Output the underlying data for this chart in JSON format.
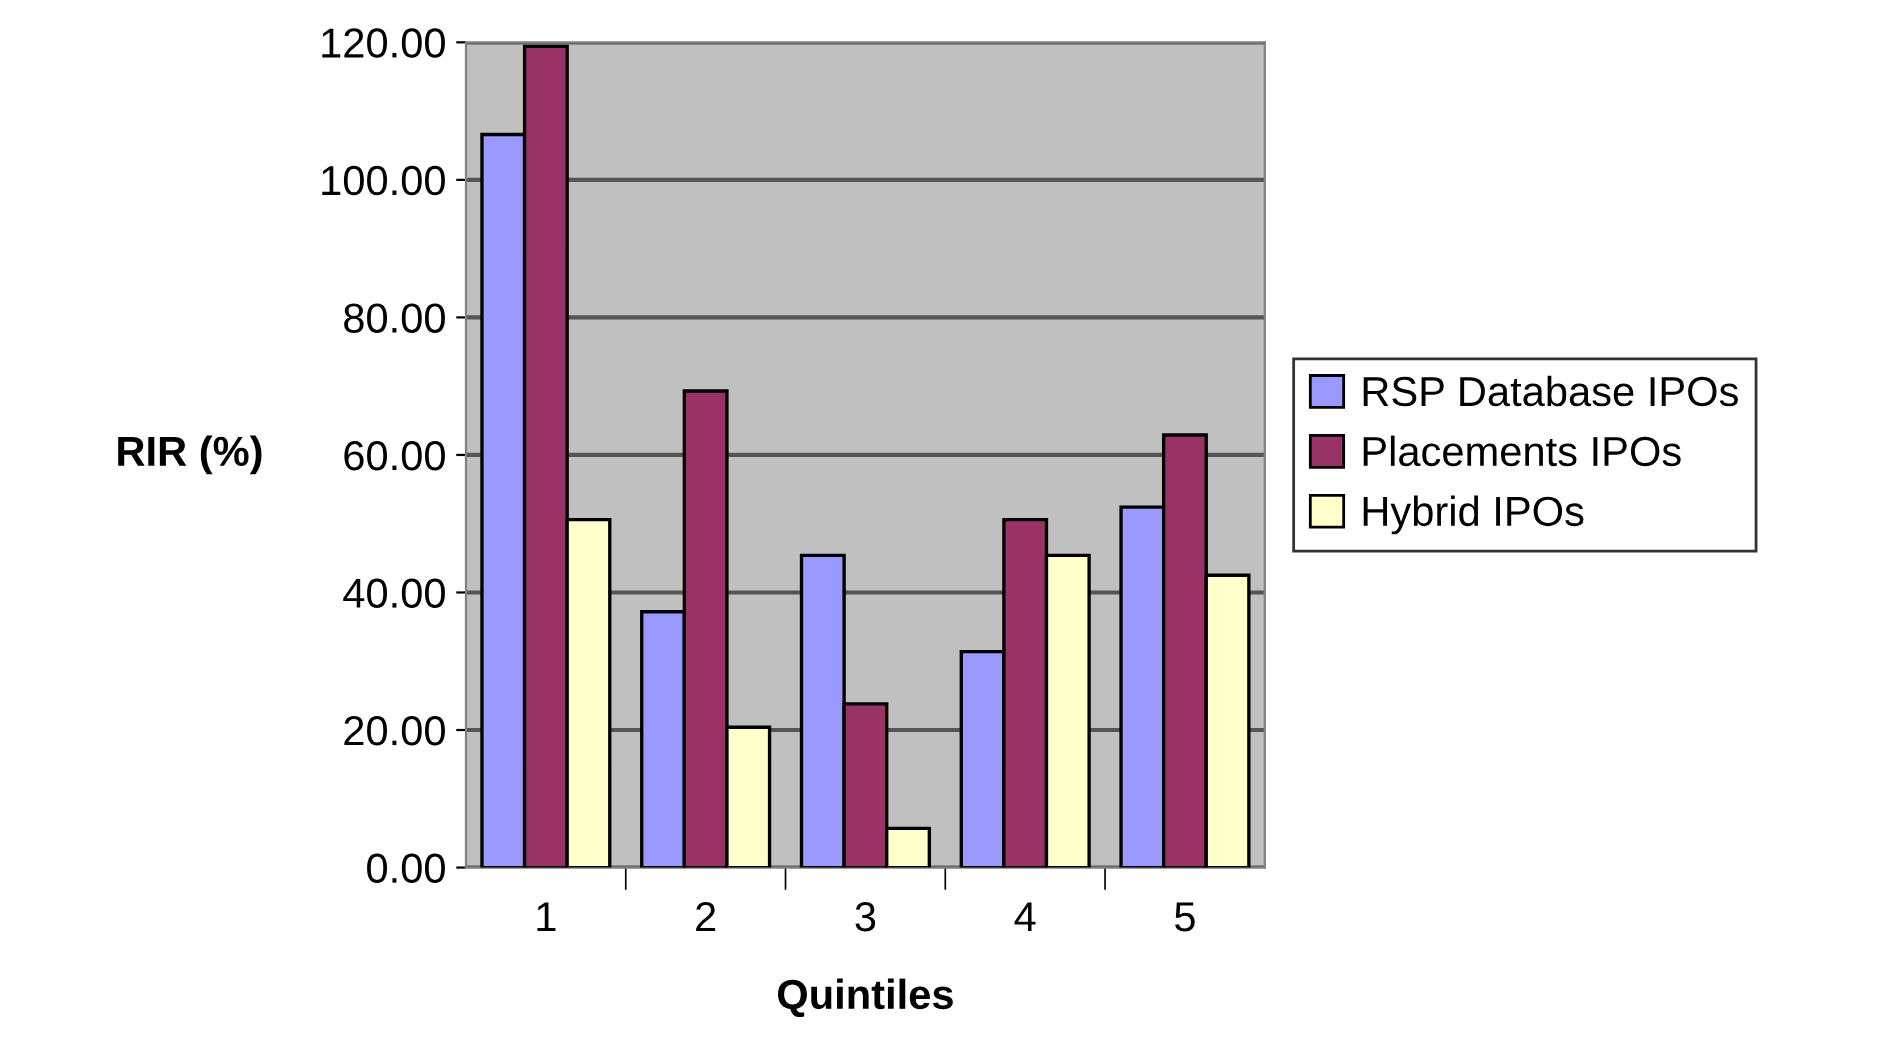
{
  "chart_data": {
    "type": "bar",
    "xlabel": "Quintiles",
    "ylabel": "RIR (%)",
    "categories": [
      "1",
      "2",
      "3",
      "4",
      "5"
    ],
    "series": [
      {
        "name": "RSP Database IPOs",
        "color": "#9999ff",
        "values": [
          106.6,
          37.2,
          45.4,
          31.4,
          52.4
        ]
      },
      {
        "name": "Placements IPOs",
        "color": "#993366",
        "values": [
          119.4,
          69.3,
          23.8,
          50.6,
          62.9
        ]
      },
      {
        "name": "Hybrid IPOs",
        "color": "#ffffcc",
        "values": [
          50.6,
          20.4,
          5.7,
          45.4,
          42.5
        ]
      }
    ],
    "ylim": [
      0,
      120
    ],
    "yticks": [
      {
        "value": 0,
        "label": "0.00"
      },
      {
        "value": 20,
        "label": "20.00"
      },
      {
        "value": 40,
        "label": "40.00"
      },
      {
        "value": 60,
        "label": "60.00"
      },
      {
        "value": 80,
        "label": "80.00"
      },
      {
        "value": 100,
        "label": "100.00"
      },
      {
        "value": 120,
        "label": "120.00"
      }
    ],
    "grid": "y",
    "legend": "right"
  }
}
